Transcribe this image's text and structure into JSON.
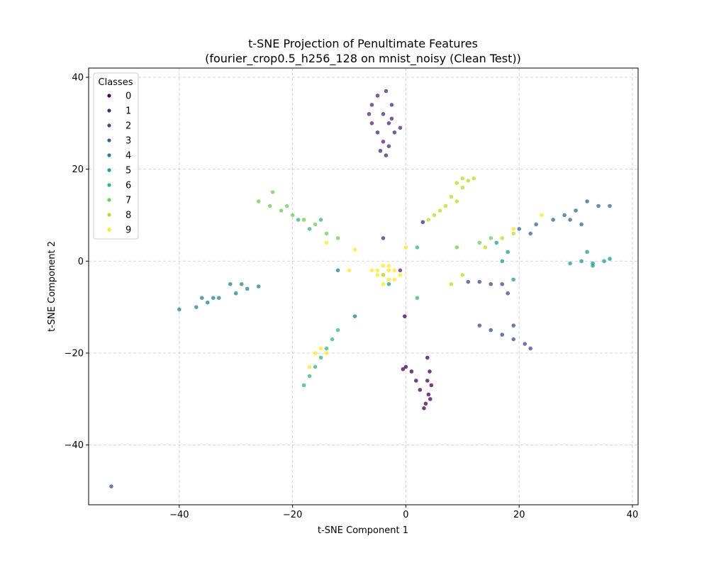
{
  "chart_data": {
    "type": "scatter",
    "title_line1": "t-SNE Projection of Penultimate Features",
    "title_line2": "(fourier_crop0.5_h256_128 on mnist_noisy (Clean Test))",
    "xlabel": "t-SNE Component 1",
    "ylabel": "t-SNE Component 2",
    "xlim": [
      -56,
      41
    ],
    "ylim": [
      -53,
      42
    ],
    "xticks": [
      -40,
      -20,
      0,
      20,
      40
    ],
    "yticks": [
      -40,
      -20,
      0,
      20,
      40
    ],
    "xtick_labels": [
      "−40",
      "−20",
      "0",
      "20",
      "40"
    ],
    "ytick_labels": [
      "−40",
      "−20",
      "0",
      "20",
      "40"
    ],
    "grid": true,
    "legend_title": "Classes",
    "legend_position": "top-left",
    "series": [
      {
        "name": "0",
        "color": "#440154",
        "points": [
          [
            3.8,
            -21
          ],
          [
            4.2,
            -24
          ],
          [
            4.5,
            -27
          ],
          [
            4.0,
            -29
          ],
          [
            3.5,
            -31
          ],
          [
            3.2,
            -32
          ],
          [
            3.8,
            -26
          ],
          [
            2.5,
            -28
          ],
          [
            1.8,
            -26
          ],
          [
            0,
            -23
          ],
          [
            -0.5,
            -23.5
          ],
          [
            1,
            -24
          ],
          [
            4.3,
            -30
          ],
          [
            -0.2,
            -12
          ]
        ]
      },
      {
        "name": "1",
        "color": "#482878",
        "points": [
          [
            -6,
            30
          ],
          [
            -6,
            34
          ],
          [
            -5,
            36
          ],
          [
            -3.5,
            37
          ],
          [
            -2.5,
            34
          ],
          [
            -4,
            32
          ],
          [
            -3,
            30
          ],
          [
            -5,
            28
          ],
          [
            -4,
            26
          ],
          [
            -3,
            25
          ],
          [
            -4.5,
            24
          ],
          [
            -2,
            28
          ],
          [
            -1,
            29
          ],
          [
            -6.5,
            32
          ],
          [
            -3.5,
            23
          ],
          [
            -2.5,
            31
          ],
          [
            3,
            8.5
          ],
          [
            -4,
            5
          ],
          [
            -1,
            -2
          ]
        ]
      },
      {
        "name": "2",
        "color": "#3e4989",
        "points": [
          [
            13,
            -14
          ],
          [
            15,
            -15
          ],
          [
            17,
            -16
          ],
          [
            19,
            -17
          ],
          [
            21,
            -18
          ],
          [
            22,
            -19
          ],
          [
            19,
            -14
          ],
          [
            17,
            -5
          ],
          [
            15,
            -5
          ],
          [
            13,
            -4.5
          ],
          [
            11,
            -4.5
          ],
          [
            18,
            -7
          ],
          [
            -52,
            -49
          ]
        ]
      },
      {
        "name": "3",
        "color": "#31688e",
        "points": [
          [
            20,
            7
          ],
          [
            23,
            8
          ],
          [
            26,
            9
          ],
          [
            28,
            10
          ],
          [
            30,
            11
          ],
          [
            32,
            13
          ],
          [
            34,
            12
          ],
          [
            36,
            12
          ],
          [
            31,
            8
          ],
          [
            29,
            9
          ],
          [
            22,
            6
          ]
        ]
      },
      {
        "name": "4",
        "color": "#26828e",
        "points": [
          [
            -40,
            -10.5
          ],
          [
            -37,
            -10
          ],
          [
            -35,
            -9
          ],
          [
            -33,
            -8
          ],
          [
            -30,
            -7
          ],
          [
            -28,
            -6
          ],
          [
            -26,
            -5.5
          ],
          [
            -29,
            -5
          ],
          [
            -31,
            -5
          ],
          [
            -34,
            -8
          ],
          [
            -36,
            -8
          ],
          [
            -9,
            -12
          ],
          [
            -12,
            -2
          ]
        ]
      },
      {
        "name": "5",
        "color": "#1f9e89",
        "points": [
          [
            29,
            -0.5
          ],
          [
            31,
            0
          ],
          [
            33,
            -1
          ],
          [
            35,
            0
          ],
          [
            36,
            0.5
          ],
          [
            32,
            2
          ],
          [
            33,
            -0.5
          ],
          [
            19,
            -4
          ],
          [
            17,
            0
          ],
          [
            18,
            2
          ],
          [
            16,
            4
          ],
          [
            -3,
            -5
          ],
          [
            -4,
            -3
          ]
        ]
      },
      {
        "name": "6",
        "color": "#35b779",
        "points": [
          [
            -18,
            -27
          ],
          [
            -17,
            -25
          ],
          [
            -16,
            -23
          ],
          [
            -15,
            -21
          ],
          [
            -14,
            -19
          ],
          [
            -13,
            -17
          ],
          [
            -12,
            -15
          ],
          [
            -19,
            9
          ],
          [
            -17,
            7
          ],
          [
            -15,
            9
          ],
          [
            2,
            -8
          ],
          [
            2,
            3
          ]
        ]
      },
      {
        "name": "7",
        "color": "#6ece58",
        "points": [
          [
            -26,
            13
          ],
          [
            -24,
            12
          ],
          [
            -22,
            11
          ],
          [
            -20,
            10
          ],
          [
            -18,
            9
          ],
          [
            -16,
            8
          ],
          [
            -14,
            6
          ],
          [
            -12,
            5
          ],
          [
            -23.5,
            15
          ],
          [
            -21,
            12
          ],
          [
            9,
            3
          ],
          [
            13,
            4
          ],
          [
            15,
            5
          ]
        ]
      },
      {
        "name": "8",
        "color": "#b5de2b",
        "points": [
          [
            9,
            17
          ],
          [
            10,
            16
          ],
          [
            11,
            17.5
          ],
          [
            12,
            18
          ],
          [
            10,
            18
          ],
          [
            8,
            14
          ],
          [
            7,
            12
          ],
          [
            6,
            11
          ],
          [
            5,
            10
          ],
          [
            4,
            9
          ],
          [
            9,
            13
          ],
          [
            19,
            6
          ],
          [
            17,
            5
          ],
          [
            14,
            3
          ],
          [
            8,
            -5
          ],
          [
            10,
            -3
          ]
        ]
      },
      {
        "name": "9",
        "color": "#fde725",
        "points": [
          [
            -5,
            -2
          ],
          [
            -4,
            -3
          ],
          [
            -3,
            -2
          ],
          [
            -2,
            -4
          ],
          [
            -4,
            -1
          ],
          [
            -3,
            -4
          ],
          [
            -5,
            -3
          ],
          [
            -2,
            -2
          ],
          [
            -4,
            -5
          ],
          [
            -3,
            -1
          ],
          [
            -1,
            -3
          ],
          [
            -6,
            -2
          ],
          [
            -9,
            2.5
          ],
          [
            -10,
            -2
          ],
          [
            -14,
            4
          ],
          [
            -16,
            -20
          ],
          [
            -17,
            -23
          ],
          [
            -15,
            -19
          ],
          [
            -14,
            -20
          ],
          [
            19,
            7
          ],
          [
            24,
            10
          ],
          [
            0,
            3
          ]
        ]
      }
    ]
  }
}
